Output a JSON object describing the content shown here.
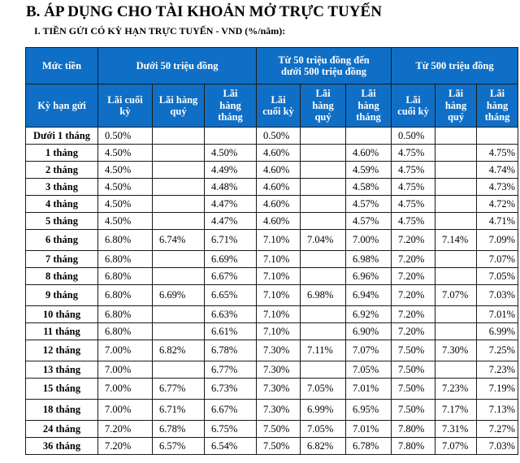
{
  "heading": "B. ÁP DỤNG CHO TÀI KHOẢN MỞ TRỰC TUYẾN",
  "subheading": "I.  TIỀN GỬI CÓ KỲ HẠN TRỰC TUYẾN - VND (%/năm):",
  "table": {
    "amount_label": "Mức tiền",
    "term_label": "Kỳ hạn gửi",
    "groups": [
      {
        "label": "Dưới 50 triệu đồng",
        "sub": [
          "Lãi cuối\nkỳ",
          "Lãi hàng\nquý",
          "Lãi\nhàng\ntháng"
        ]
      },
      {
        "label": "Từ 50 triệu đồng đến\ndưới 500 triệu đồng",
        "sub": [
          "Lãi\ncuối kỳ",
          "Lãi\nhàng\nquý",
          "Lãi\nhàng\ntháng"
        ]
      },
      {
        "label": "Từ 500 triệu đồng",
        "sub": [
          "Lãi\ncuối kỳ",
          "Lãi\nhàng\nquý",
          "Lãi\nhàng\ntháng"
        ]
      }
    ],
    "rows": [
      {
        "term": "Dưới 1 tháng",
        "v": [
          "0.50%",
          "",
          "",
          "0.50%",
          "",
          "",
          "0.50%",
          "",
          ""
        ]
      },
      {
        "term": "1 tháng",
        "v": [
          "4.50%",
          "",
          "4.50%",
          "4.60%",
          "",
          "4.60%",
          "4.75%",
          "",
          "4.75%"
        ]
      },
      {
        "term": "2 tháng",
        "v": [
          "4.50%",
          "",
          "4.49%",
          "4.60%",
          "",
          "4.59%",
          "4.75%",
          "",
          "4.74%"
        ]
      },
      {
        "term": "3 tháng",
        "v": [
          "4.50%",
          "",
          "4.48%",
          "4.60%",
          "",
          "4.58%",
          "4.75%",
          "",
          "4.73%"
        ]
      },
      {
        "term": "4 tháng",
        "v": [
          "4.50%",
          "",
          "4.47%",
          "4.60%",
          "",
          "4.57%",
          "4.75%",
          "",
          "4.72%"
        ]
      },
      {
        "term": "5 tháng",
        "v": [
          "4.50%",
          "",
          "4.47%",
          "4.60%",
          "",
          "4.57%",
          "4.75%",
          "",
          "4.71%"
        ]
      },
      {
        "term": "6 tháng",
        "v": [
          "6.80%",
          "6.74%",
          "6.71%",
          "7.10%",
          "7.04%",
          "7.00%",
          "7.20%",
          "7.14%",
          "7.09%"
        ]
      },
      {
        "term": "7 tháng",
        "v": [
          "6.80%",
          "",
          "6.69%",
          "7.10%",
          "",
          "6.98%",
          "7.20%",
          "",
          "7.07%"
        ]
      },
      {
        "term": "8 tháng",
        "v": [
          "6.80%",
          "",
          "6.67%",
          "7.10%",
          "",
          "6.96%",
          "7.20%",
          "",
          "7.05%"
        ]
      },
      {
        "term": "9 tháng",
        "v": [
          "6.80%",
          "6.69%",
          "6.65%",
          "7.10%",
          "6.98%",
          "6.94%",
          "7.20%",
          "7.07%",
          "7.03%"
        ]
      },
      {
        "term": "10 tháng",
        "v": [
          "6.80%",
          "",
          "6.63%",
          "7.10%",
          "",
          "6.92%",
          "7.20%",
          "",
          "7.01%"
        ]
      },
      {
        "term": "11 tháng",
        "v": [
          "6.80%",
          "",
          "6.61%",
          "7.10%",
          "",
          "6.90%",
          "7.20%",
          "",
          "6.99%"
        ]
      },
      {
        "term": "12 tháng",
        "v": [
          "7.00%",
          "6.82%",
          "6.78%",
          "7.30%",
          "7.11%",
          "7.07%",
          "7.50%",
          "7.30%",
          "7.25%"
        ]
      },
      {
        "term": "13 tháng",
        "v": [
          "7.00%",
          "",
          "6.77%",
          "7.30%",
          "",
          "7.05%",
          "7.50%",
          "",
          "7.23%"
        ]
      },
      {
        "term": "15 tháng",
        "v": [
          "7.00%",
          "6.77%",
          "6.73%",
          "7.30%",
          "7.05%",
          "7.01%",
          "7.50%",
          "7.23%",
          "7.19%"
        ]
      },
      {
        "term": "18 tháng",
        "v": [
          "7.00%",
          "6.71%",
          "6.67%",
          "7.30%",
          "6.99%",
          "6.95%",
          "7.50%",
          "7.17%",
          "7.13%"
        ]
      },
      {
        "term": "24 tháng",
        "v": [
          "7.20%",
          "6.78%",
          "6.75%",
          "7.50%",
          "7.05%",
          "7.01%",
          "7.80%",
          "7.31%",
          "7.27%"
        ]
      },
      {
        "term": "36 tháng",
        "v": [
          "7.20%",
          "6.57%",
          "6.54%",
          "7.50%",
          "6.82%",
          "6.78%",
          "7.80%",
          "7.07%",
          "7.03%"
        ]
      }
    ]
  }
}
